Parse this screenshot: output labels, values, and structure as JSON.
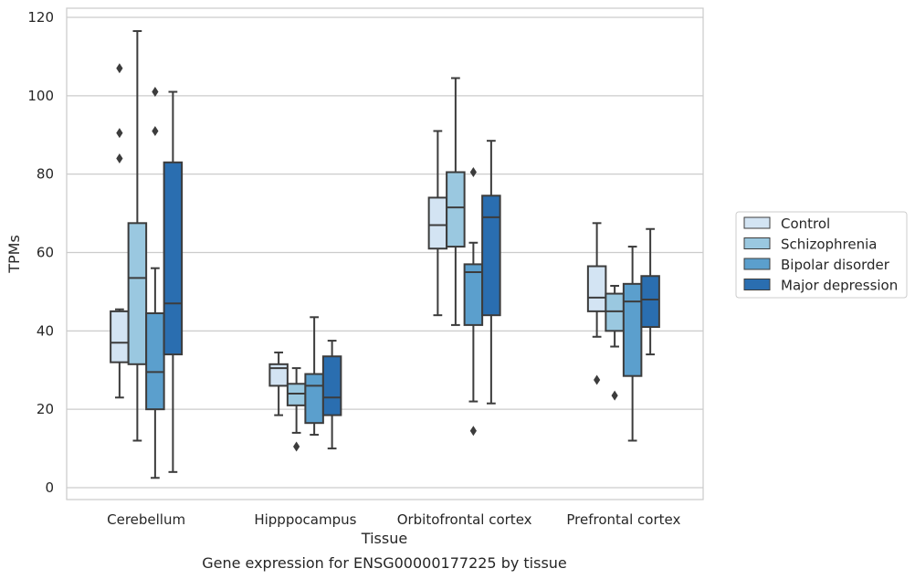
{
  "chart_data": {
    "type": "box",
    "title": "",
    "caption": "Gene expression for ENSG00000177225 by tissue",
    "xlabel": "Tissue",
    "ylabel": "TPMs",
    "ylim": [
      -3,
      122
    ],
    "yticks": [
      0,
      20,
      40,
      60,
      80,
      100,
      120
    ],
    "grid": "horizontal",
    "legend_position": "right",
    "categories": [
      "Cerebellum",
      "Hipppocampus",
      "Orbitofrontal cortex",
      "Prefrontal cortex"
    ],
    "series": [
      {
        "name": "Control",
        "color": "#d3e4f3",
        "boxes": [
          {
            "category": "Cerebellum",
            "whisker_low": 23,
            "q1": 32,
            "median": 37,
            "q3": 45,
            "whisker_high": 45.5,
            "outliers": [
              84,
              90.5,
              107
            ]
          },
          {
            "category": "Hipppocampus",
            "whisker_low": 18.5,
            "q1": 26,
            "median": 30.5,
            "q3": 31.5,
            "whisker_high": 34.5,
            "outliers": []
          },
          {
            "category": "Orbitofrontal cortex",
            "whisker_low": 44,
            "q1": 61,
            "median": 67,
            "q3": 74,
            "whisker_high": 91,
            "outliers": []
          },
          {
            "category": "Prefrontal cortex",
            "whisker_low": 38.5,
            "q1": 45,
            "median": 48.5,
            "q3": 56.5,
            "whisker_high": 67.5,
            "outliers": [
              27.5
            ]
          }
        ]
      },
      {
        "name": "Schizophrenia",
        "color": "#9ac8e0",
        "boxes": [
          {
            "category": "Cerebellum",
            "whisker_low": 12,
            "q1": 31.5,
            "median": 53.5,
            "q3": 67.5,
            "whisker_high": 116.5,
            "outliers": []
          },
          {
            "category": "Hipppocampus",
            "whisker_low": 14,
            "q1": 21,
            "median": 24,
            "q3": 26.5,
            "whisker_high": 30.5,
            "outliers": [
              10.5
            ]
          },
          {
            "category": "Orbitofrontal cortex",
            "whisker_low": 41.5,
            "q1": 61.5,
            "median": 71.5,
            "q3": 80.5,
            "whisker_high": 104.5,
            "outliers": []
          },
          {
            "category": "Prefrontal cortex",
            "whisker_low": 36,
            "q1": 40,
            "median": 45,
            "q3": 49.5,
            "whisker_high": 51.5,
            "outliers": [
              23.5
            ]
          }
        ]
      },
      {
        "name": "Bipolar disorder",
        "color": "#5b9fcd",
        "boxes": [
          {
            "category": "Cerebellum",
            "whisker_low": 2.5,
            "q1": 20,
            "median": 29.5,
            "q3": 44.5,
            "whisker_high": 56,
            "outliers": [
              91,
              101
            ]
          },
          {
            "category": "Hipppocampus",
            "whisker_low": 13.5,
            "q1": 16.5,
            "median": 26,
            "q3": 29,
            "whisker_high": 43.5,
            "outliers": []
          },
          {
            "category": "Orbitofrontal cortex",
            "whisker_low": 22,
            "q1": 41.5,
            "median": 55,
            "q3": 57,
            "whisker_high": 62.5,
            "outliers": [
              14.5,
              80.5
            ]
          },
          {
            "category": "Prefrontal cortex",
            "whisker_low": 12,
            "q1": 28.5,
            "median": 47.5,
            "q3": 52,
            "whisker_high": 61.5,
            "outliers": []
          }
        ]
      },
      {
        "name": "Major depression",
        "color": "#2a6eb0",
        "boxes": [
          {
            "category": "Cerebellum",
            "whisker_low": 4,
            "q1": 34,
            "median": 47,
            "q3": 83,
            "whisker_high": 101,
            "outliers": []
          },
          {
            "category": "Hipppocampus",
            "whisker_low": 10,
            "q1": 18.5,
            "median": 23,
            "q3": 33.5,
            "whisker_high": 37.5,
            "outliers": []
          },
          {
            "category": "Orbitofrontal cortex",
            "whisker_low": 21.5,
            "q1": 44,
            "median": 69,
            "q3": 74.5,
            "whisker_high": 88.5,
            "outliers": []
          },
          {
            "category": "Prefrontal cortex",
            "whisker_low": 34,
            "q1": 41,
            "median": 48,
            "q3": 54,
            "whisker_high": 66,
            "outliers": []
          }
        ]
      }
    ]
  }
}
